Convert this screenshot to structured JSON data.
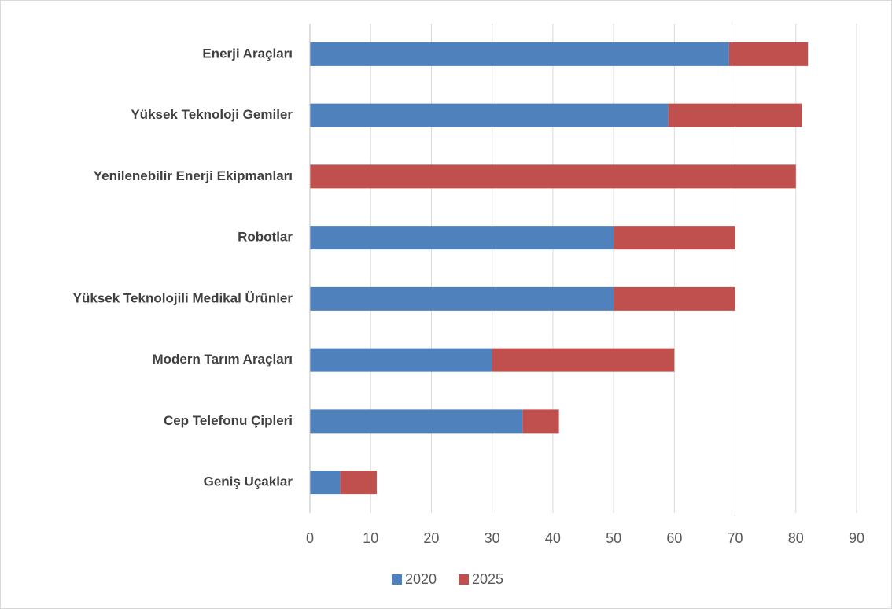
{
  "chart_data": {
    "type": "stacked_barh",
    "categories": [
      "Enerji Araçları",
      "Yüksek Teknoloji Gemiler",
      "Yenilenebilir Enerji Ekipmanları",
      "Robotlar",
      "Yüksek Teknolojili Medikal Ürünler",
      "Modern Tarım Araçları",
      "Cep Telefonu Çipleri",
      "Geniş Uçaklar"
    ],
    "series": [
      {
        "name": "2020",
        "color": "#4f81bd",
        "values": [
          69,
          59,
          0,
          50,
          50,
          30,
          35,
          5
        ]
      },
      {
        "name": "2025",
        "color": "#c0504d",
        "values": [
          13,
          22,
          80,
          20,
          20,
          30,
          6,
          6
        ]
      }
    ],
    "xlim": [
      0,
      90
    ],
    "xticks": [
      0,
      10,
      20,
      30,
      40,
      50,
      60,
      70,
      80,
      90
    ],
    "grid": true,
    "legend": "bottom"
  }
}
